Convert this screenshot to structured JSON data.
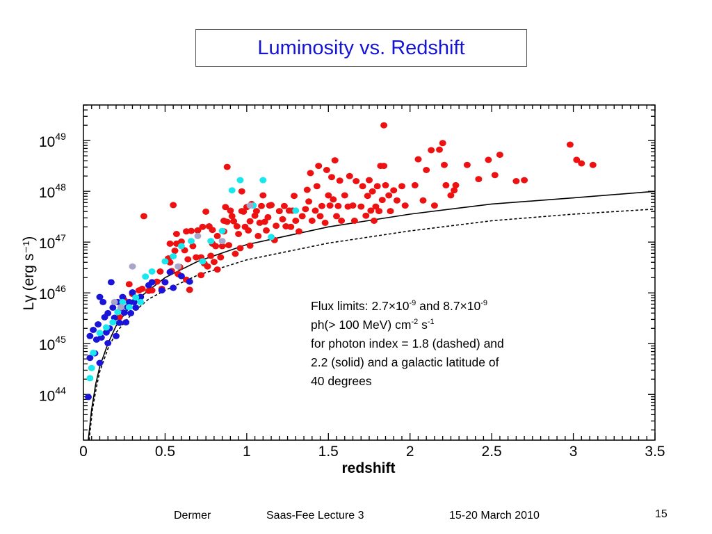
{
  "slide": {
    "title": "Luminosity vs. Redshift",
    "footer_author": "Dermer",
    "footer_event": "Saas-Fee Lecture 3",
    "footer_date": "15-20 March 2010",
    "page_number": "15"
  },
  "annotation": {
    "line1_a": "Flux limits: 2.7×10",
    "line1_exp1": "-9",
    "line1_b": " and 8.7×10",
    "line1_exp2": "-9",
    "line2_a": "ph(> 100 MeV) cm",
    "line2_exp1": "-2",
    "line2_b": " s",
    "line2_exp2": "-1",
    "line3": "for photon index = 1.8 (dashed) and",
    "line4": "2.2 (solid) and a galactic latitude of",
    "line5": "40 degrees"
  },
  "chart_data": {
    "type": "scatter",
    "xlabel": "redshift",
    "ylabel": "Lγ (erg s⁻¹)",
    "xlim": [
      0,
      3.5
    ],
    "ylim_log10": [
      43.1,
      49.7
    ],
    "y_scale": "log",
    "x_ticks": [
      "0",
      "0.5",
      "1",
      "1.5",
      "2",
      "2.5",
      "3",
      "3.5"
    ],
    "y_ticks": [
      {
        "base": "10",
        "exp": "44",
        "log": 44
      },
      {
        "base": "10",
        "exp": "45",
        "log": 45
      },
      {
        "base": "10",
        "exp": "46",
        "log": 46
      },
      {
        "base": "10",
        "exp": "47",
        "log": 47
      },
      {
        "base": "10",
        "exp": "48",
        "log": 48
      },
      {
        "base": "10",
        "exp": "49",
        "log": 49
      }
    ],
    "colors": {
      "red": "#ee1111",
      "blue": "#1a14d8",
      "cyan": "#18e8ee",
      "gray": "#a8a6c8",
      "curve": "#000000"
    },
    "series": [
      {
        "color": "red",
        "points": [
          [
            0.22,
            45.52
          ],
          [
            0.25,
            45.86
          ],
          [
            0.28,
            46.17
          ],
          [
            0.3,
            45.98
          ],
          [
            0.34,
            46.05
          ],
          [
            0.36,
            46.08
          ],
          [
            0.37,
            47.51
          ],
          [
            0.4,
            46.04
          ],
          [
            0.42,
            46.05
          ],
          [
            0.45,
            46.22
          ],
          [
            0.47,
            46.42
          ],
          [
            0.48,
            46.08
          ],
          [
            0.5,
            46.21
          ],
          [
            0.52,
            46.68
          ],
          [
            0.53,
            46.6
          ],
          [
            0.53,
            46.97
          ],
          [
            0.54,
            46.43
          ],
          [
            0.55,
            47.73
          ],
          [
            0.56,
            46.83
          ],
          [
            0.57,
            47.16
          ],
          [
            0.57,
            46.97
          ],
          [
            0.58,
            46.37
          ],
          [
            0.59,
            46.51
          ],
          [
            0.6,
            47.01
          ],
          [
            0.62,
            46.84
          ],
          [
            0.63,
            46.26
          ],
          [
            0.63,
            47.21
          ],
          [
            0.64,
            46.66
          ],
          [
            0.65,
            46.06
          ],
          [
            0.66,
            47.22
          ],
          [
            0.67,
            46.92
          ],
          [
            0.69,
            46.7
          ],
          [
            0.7,
            47.23
          ],
          [
            0.72,
            46.7
          ],
          [
            0.72,
            46.35
          ],
          [
            0.73,
            47.3
          ],
          [
            0.74,
            46.58
          ],
          [
            0.75,
            47.6
          ],
          [
            0.76,
            46.52
          ],
          [
            0.77,
            47.31
          ],
          [
            0.78,
            46.73
          ],
          [
            0.79,
            47.24
          ],
          [
            0.79,
            46.97
          ],
          [
            0.8,
            46.61
          ],
          [
            0.81,
            46.92
          ],
          [
            0.82,
            46.46
          ],
          [
            0.82,
            47.12
          ],
          [
            0.84,
            46.7
          ],
          [
            0.85,
            46.92
          ],
          [
            0.86,
            47.21
          ],
          [
            0.86,
            47.42
          ],
          [
            0.87,
            47.69
          ],
          [
            0.88,
            47.4
          ],
          [
            0.88,
            48.48
          ],
          [
            0.89,
            46.94
          ],
          [
            0.9,
            47.62
          ],
          [
            0.91,
            47.51
          ],
          [
            0.92,
            47.41
          ],
          [
            0.93,
            46.77
          ],
          [
            0.94,
            47.31
          ],
          [
            0.95,
            47.16
          ],
          [
            0.96,
            46.88
          ],
          [
            0.97,
            48.0
          ],
          [
            0.97,
            47.61
          ],
          [
            0.98,
            47.6
          ],
          [
            0.99,
            47.3
          ],
          [
            1.0,
            47.69
          ],
          [
            1.01,
            47.23
          ],
          [
            1.02,
            46.93
          ],
          [
            1.02,
            47.41
          ],
          [
            1.03,
            47.75
          ],
          [
            1.05,
            47.52
          ],
          [
            1.06,
            47.61
          ],
          [
            1.07,
            47.12
          ],
          [
            1.08,
            47.38
          ],
          [
            1.09,
            47.71
          ],
          [
            1.1,
            47.92
          ],
          [
            1.11,
            47.4
          ],
          [
            1.12,
            47.23
          ],
          [
            1.13,
            47.49
          ],
          [
            1.14,
            47.72
          ],
          [
            1.15,
            47.73
          ],
          [
            1.17,
            47.04
          ],
          [
            1.18,
            47.32
          ],
          [
            1.2,
            47.61
          ],
          [
            1.22,
            47.45
          ],
          [
            1.23,
            47.71
          ],
          [
            1.24,
            47.31
          ],
          [
            1.26,
            47.62
          ],
          [
            1.27,
            47.3
          ],
          [
            1.28,
            47.62
          ],
          [
            1.29,
            47.91
          ],
          [
            1.3,
            47.42
          ],
          [
            1.32,
            47.21
          ],
          [
            1.34,
            47.51
          ],
          [
            1.36,
            47.65
          ],
          [
            1.37,
            48.03
          ],
          [
            1.38,
            47.8
          ],
          [
            1.39,
            48.36
          ],
          [
            1.4,
            47.42
          ],
          [
            1.42,
            47.62
          ],
          [
            1.43,
            48.1
          ],
          [
            1.44,
            48.5
          ],
          [
            1.45,
            47.51
          ],
          [
            1.46,
            47.71
          ],
          [
            1.48,
            47.38
          ],
          [
            1.49,
            48.42
          ],
          [
            1.5,
            47.92
          ],
          [
            1.51,
            47.72
          ],
          [
            1.52,
            48.28
          ],
          [
            1.53,
            47.84
          ],
          [
            1.54,
            48.61
          ],
          [
            1.55,
            47.51
          ],
          [
            1.56,
            47.71
          ],
          [
            1.57,
            48.21
          ],
          [
            1.58,
            47.42
          ],
          [
            1.6,
            47.92
          ],
          [
            1.62,
            47.7
          ],
          [
            1.63,
            48.3
          ],
          [
            1.65,
            47.72
          ],
          [
            1.66,
            47.42
          ],
          [
            1.67,
            48.2
          ],
          [
            1.7,
            47.7
          ],
          [
            1.71,
            48.1
          ],
          [
            1.73,
            47.52
          ],
          [
            1.74,
            47.91
          ],
          [
            1.75,
            48.22
          ],
          [
            1.76,
            47.62
          ],
          [
            1.77,
            48.0
          ],
          [
            1.78,
            47.42
          ],
          [
            1.79,
            47.7
          ],
          [
            1.8,
            48.1
          ],
          [
            1.81,
            47.61
          ],
          [
            1.82,
            48.5
          ],
          [
            1.83,
            47.83
          ],
          [
            1.84,
            49.3
          ],
          [
            1.84,
            48.5
          ],
          [
            1.85,
            48.12
          ],
          [
            1.87,
            47.92
          ],
          [
            1.88,
            47.61
          ],
          [
            1.9,
            48.02
          ],
          [
            1.92,
            47.82
          ],
          [
            1.95,
            48.1
          ],
          [
            1.97,
            47.72
          ],
          [
            2.03,
            48.12
          ],
          [
            2.05,
            48.63
          ],
          [
            2.08,
            47.82
          ],
          [
            2.1,
            48.42
          ],
          [
            2.13,
            48.81
          ],
          [
            2.15,
            47.72
          ],
          [
            2.18,
            48.82
          ],
          [
            2.2,
            48.95
          ],
          [
            2.21,
            48.52
          ],
          [
            2.22,
            48.12
          ],
          [
            2.25,
            47.92
          ],
          [
            2.27,
            48.02
          ],
          [
            2.28,
            48.12
          ],
          [
            2.35,
            48.52
          ],
          [
            2.42,
            48.24
          ],
          [
            2.48,
            48.62
          ],
          [
            2.52,
            48.32
          ],
          [
            2.55,
            48.72
          ],
          [
            2.65,
            48.2
          ],
          [
            2.7,
            48.22
          ],
          [
            2.98,
            48.92
          ],
          [
            3.02,
            48.62
          ],
          [
            3.05,
            48.55
          ],
          [
            3.12,
            48.52
          ]
        ]
      },
      {
        "color": "blue",
        "points": [
          [
            0.03,
            43.95
          ],
          [
            0.04,
            44.72
          ],
          [
            0.04,
            45.15
          ],
          [
            0.06,
            45.27
          ],
          [
            0.07,
            44.81
          ],
          [
            0.08,
            45.08
          ],
          [
            0.09,
            45.38
          ],
          [
            0.1,
            45.92
          ],
          [
            0.1,
            44.62
          ],
          [
            0.11,
            45.12
          ],
          [
            0.12,
            45.82
          ],
          [
            0.13,
            45.52
          ],
          [
            0.14,
            45.22
          ],
          [
            0.15,
            45.01
          ],
          [
            0.15,
            45.6
          ],
          [
            0.16,
            45.3
          ],
          [
            0.17,
            46.21
          ],
          [
            0.18,
            45.71
          ],
          [
            0.19,
            45.51
          ],
          [
            0.2,
            45.15
          ],
          [
            0.21,
            45.82
          ],
          [
            0.22,
            45.41
          ],
          [
            0.23,
            45.71
          ],
          [
            0.24,
            45.92
          ],
          [
            0.25,
            45.61
          ],
          [
            0.26,
            45.42
          ],
          [
            0.27,
            45.72
          ],
          [
            0.28,
            45.82
          ],
          [
            0.29,
            45.6
          ],
          [
            0.3,
            46.01
          ],
          [
            0.31,
            45.82
          ],
          [
            0.32,
            45.71
          ],
          [
            0.35,
            45.92
          ],
          [
            0.4,
            46.15
          ],
          [
            0.42,
            46.21
          ],
          [
            0.48,
            46.05
          ],
          [
            0.5,
            46.21
          ],
          [
            0.53,
            46.41
          ],
          [
            0.55,
            46.1
          ],
          [
            0.6,
            46.33
          ],
          [
            0.65,
            46.22
          ]
        ]
      },
      {
        "color": "cyan",
        "points": [
          [
            0.04,
            44.32
          ],
          [
            0.05,
            44.52
          ],
          [
            0.06,
            44.82
          ],
          [
            0.1,
            45.21
          ],
          [
            0.14,
            45.32
          ],
          [
            0.18,
            45.42
          ],
          [
            0.21,
            45.62
          ],
          [
            0.24,
            45.82
          ],
          [
            0.28,
            45.72
          ],
          [
            0.32,
            45.91
          ],
          [
            0.35,
            45.82
          ],
          [
            0.38,
            46.32
          ],
          [
            0.42,
            46.42
          ],
          [
            0.5,
            46.62
          ],
          [
            0.55,
            46.72
          ],
          [
            0.6,
            46.92
          ],
          [
            0.66,
            47.02
          ],
          [
            0.73,
            46.62
          ],
          [
            0.78,
            47.02
          ],
          [
            0.85,
            47.22
          ],
          [
            0.91,
            48.02
          ],
          [
            0.96,
            48.22
          ],
          [
            1.04,
            47.72
          ],
          [
            1.1,
            48.22
          ],
          [
            1.15,
            47.1
          ],
          [
            1.3,
            47.62
          ]
        ]
      },
      {
        "color": "gray",
        "points": [
          [
            0.19,
            45.82
          ],
          [
            0.23,
            45.72
          ],
          [
            0.3,
            46.52
          ],
          [
            0.58,
            46.52
          ],
          [
            0.7,
            47.12
          ],
          [
            0.85,
            47.02
          ],
          [
            1.02,
            47.72
          ]
        ]
      }
    ],
    "curves": [
      {
        "style": "solid",
        "points": [
          [
            0.03,
            43.1
          ],
          [
            0.05,
            43.7
          ],
          [
            0.075,
            44.2
          ],
          [
            0.1,
            44.55
          ],
          [
            0.15,
            45.0
          ],
          [
            0.2,
            45.35
          ],
          [
            0.3,
            45.8
          ],
          [
            0.4,
            46.05
          ],
          [
            0.5,
            46.3
          ],
          [
            0.7,
            46.62
          ],
          [
            1.0,
            46.95
          ],
          [
            1.5,
            47.3
          ],
          [
            2.0,
            47.55
          ],
          [
            2.5,
            47.75
          ],
          [
            3.0,
            47.87
          ],
          [
            3.5,
            48.0
          ]
        ]
      },
      {
        "style": "dashed",
        "points": [
          [
            0.035,
            43.1
          ],
          [
            0.055,
            43.7
          ],
          [
            0.08,
            44.15
          ],
          [
            0.1,
            44.45
          ],
          [
            0.15,
            44.9
          ],
          [
            0.2,
            45.22
          ],
          [
            0.3,
            45.6
          ],
          [
            0.4,
            45.88
          ],
          [
            0.5,
            46.05
          ],
          [
            0.7,
            46.35
          ],
          [
            1.0,
            46.65
          ],
          [
            1.5,
            46.98
          ],
          [
            2.0,
            47.22
          ],
          [
            2.5,
            47.42
          ],
          [
            3.0,
            47.55
          ],
          [
            3.5,
            47.65
          ]
        ]
      }
    ]
  }
}
